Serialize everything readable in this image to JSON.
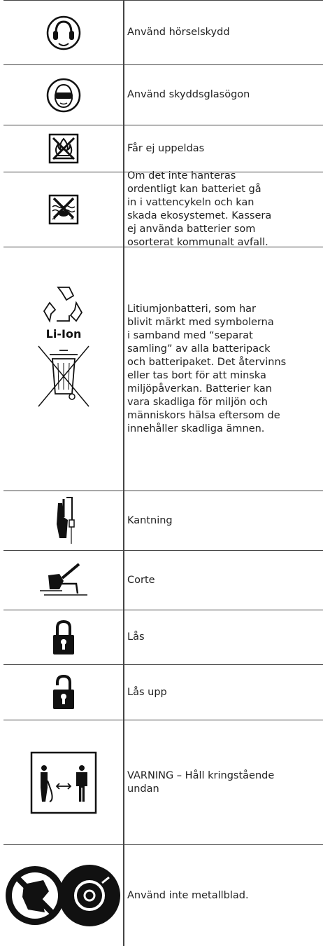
{
  "rows": [
    {
      "lines": [
        "Använd hörselskydd"
      ]
    },
    {
      "lines": [
        "Använd skyddsglasögon"
      ]
    },
    {
      "lines": [
        "Får ej uppeldas"
      ]
    },
    {
      "lines": [
        "Om det inte hanteras",
        "ordentligt kan batteriet gå",
        "in i vattencykeln och kan",
        "skada ekosystemet. Kassera",
        "ej använda batterier som",
        "osorterat kommunalt avfall."
      ]
    },
    {
      "icon_label": "Li-Ion",
      "lines": [
        "Litiumjonbatteri, som har",
        "blivit märkt med symbolerna",
        "i samband med “separat",
        "samling” av alla batteripack",
        "och batteripaket. Det återvinns",
        "eller tas bort för att minska",
        "miljöpåverkan. Batterier kan",
        "vara skadliga för miljön och",
        "människors hälsa eftersom de",
        "innehåller skadliga ämnen."
      ]
    },
    {
      "lines": [
        "Kantning"
      ]
    },
    {
      "lines": [
        "Corte"
      ]
    },
    {
      "lines": [
        "Lås"
      ]
    },
    {
      "lines": [
        "Lås upp"
      ]
    },
    {
      "lines": [
        "VARNING – Håll kringstående",
        "undan"
      ]
    },
    {
      "lines": [
        "Använd inte metallblad."
      ]
    }
  ]
}
